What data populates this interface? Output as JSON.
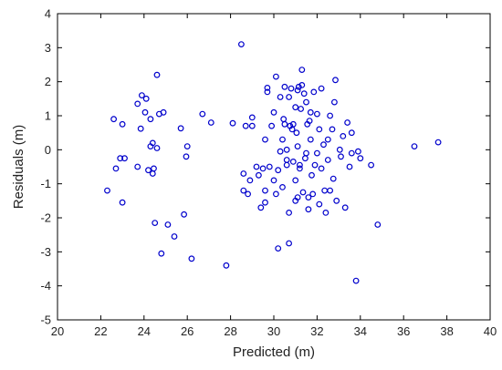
{
  "chart_data": {
    "type": "scatter",
    "title": "",
    "xlabel": "Predicted (m)",
    "ylabel": "Residuals (m)",
    "xlim": [
      20,
      40
    ],
    "ylim": [
      -5,
      4
    ],
    "x_ticks": [
      20,
      22,
      24,
      26,
      28,
      30,
      32,
      34,
      36,
      38,
      40
    ],
    "y_ticks": [
      -5,
      -4,
      -3,
      -2,
      -1,
      0,
      1,
      2,
      3,
      4
    ],
    "grid": false,
    "legend": "none",
    "marker": "open-circle",
    "marker_color": "#0000cc",
    "series": [
      {
        "points": [
          [
            22.3,
            -1.2
          ],
          [
            22.6,
            0.9
          ],
          [
            22.7,
            -0.55
          ],
          [
            22.9,
            -0.25
          ],
          [
            23.0,
            0.75
          ],
          [
            23.1,
            -0.25
          ],
          [
            23.0,
            -1.55
          ],
          [
            23.7,
            1.35
          ],
          [
            23.7,
            -0.5
          ],
          [
            23.9,
            1.6
          ],
          [
            23.85,
            0.62
          ],
          [
            24.1,
            1.5
          ],
          [
            24.05,
            1.1
          ],
          [
            24.2,
            -0.6
          ],
          [
            24.3,
            0.1
          ],
          [
            24.4,
            0.2
          ],
          [
            24.4,
            -0.7
          ],
          [
            24.3,
            0.9
          ],
          [
            24.45,
            -0.55
          ],
          [
            24.5,
            -2.15
          ],
          [
            24.6,
            2.2
          ],
          [
            24.6,
            0.05
          ],
          [
            24.7,
            1.05
          ],
          [
            24.8,
            -3.05
          ],
          [
            24.9,
            1.1
          ],
          [
            25.1,
            -2.2
          ],
          [
            25.4,
            -2.55
          ],
          [
            25.7,
            0.63
          ],
          [
            25.85,
            -1.9
          ],
          [
            26.0,
            0.1
          ],
          [
            25.95,
            -0.2
          ],
          [
            26.2,
            -3.2
          ],
          [
            26.7,
            1.05
          ],
          [
            27.1,
            0.8
          ],
          [
            27.8,
            -3.4
          ],
          [
            28.1,
            0.78
          ],
          [
            28.5,
            3.1
          ],
          [
            28.6,
            -0.7
          ],
          [
            28.6,
            -1.2
          ],
          [
            28.7,
            0.7
          ],
          [
            28.8,
            -1.3
          ],
          [
            28.9,
            -0.9
          ],
          [
            29.0,
            0.7
          ],
          [
            29.0,
            0.95
          ],
          [
            29.2,
            -0.5
          ],
          [
            29.3,
            -0.75
          ],
          [
            29.4,
            -1.7
          ],
          [
            29.5,
            -0.55
          ],
          [
            29.6,
            -1.2
          ],
          [
            29.6,
            -1.55
          ],
          [
            29.6,
            0.3
          ],
          [
            29.7,
            1.7
          ],
          [
            29.7,
            1.82
          ],
          [
            29.8,
            -0.5
          ],
          [
            29.9,
            0.7
          ],
          [
            30.0,
            -0.9
          ],
          [
            30.0,
            1.1
          ],
          [
            30.1,
            2.15
          ],
          [
            30.1,
            -1.3
          ],
          [
            30.2,
            -2.9
          ],
          [
            30.2,
            -0.6
          ],
          [
            30.3,
            -0.05
          ],
          [
            30.3,
            1.55
          ],
          [
            30.4,
            -1.1
          ],
          [
            30.4,
            0.3
          ],
          [
            30.45,
            0.9
          ],
          [
            30.5,
            1.85
          ],
          [
            30.5,
            0.75
          ],
          [
            30.6,
            -0.45
          ],
          [
            30.6,
            0.0
          ],
          [
            30.6,
            -0.3
          ],
          [
            30.7,
            1.55
          ],
          [
            30.7,
            -2.75
          ],
          [
            30.7,
            -1.85
          ],
          [
            30.75,
            0.7
          ],
          [
            30.8,
            1.8
          ],
          [
            30.85,
            0.6
          ],
          [
            30.9,
            -0.35
          ],
          [
            30.9,
            0.75
          ],
          [
            31.0,
            -1.5
          ],
          [
            31.0,
            -0.9
          ],
          [
            31.0,
            1.25
          ],
          [
            31.05,
            0.5
          ],
          [
            31.1,
            -1.4
          ],
          [
            31.1,
            0.1
          ],
          [
            31.1,
            1.75
          ],
          [
            31.15,
            1.85
          ],
          [
            31.2,
            -0.45
          ],
          [
            31.2,
            -0.55
          ],
          [
            31.25,
            1.2
          ],
          [
            31.3,
            2.35
          ],
          [
            31.3,
            1.9
          ],
          [
            31.35,
            -1.25
          ],
          [
            31.4,
            1.65
          ],
          [
            31.45,
            -0.25
          ],
          [
            31.5,
            -0.1
          ],
          [
            31.5,
            1.4
          ],
          [
            31.55,
            0.75
          ],
          [
            31.6,
            -1.4
          ],
          [
            31.6,
            -1.75
          ],
          [
            31.65,
            0.85
          ],
          [
            31.7,
            1.1
          ],
          [
            31.7,
            0.3
          ],
          [
            31.75,
            -0.75
          ],
          [
            31.8,
            -1.3
          ],
          [
            31.85,
            1.7
          ],
          [
            31.9,
            -0.45
          ],
          [
            32.0,
            -0.1
          ],
          [
            32.0,
            1.05
          ],
          [
            32.1,
            -1.6
          ],
          [
            32.1,
            0.6
          ],
          [
            32.2,
            1.8
          ],
          [
            32.2,
            -0.55
          ],
          [
            32.3,
            0.15
          ],
          [
            32.35,
            -1.2
          ],
          [
            32.4,
            -1.85
          ],
          [
            32.5,
            -0.3
          ],
          [
            32.5,
            0.3
          ],
          [
            32.6,
            1.0
          ],
          [
            32.6,
            -1.2
          ],
          [
            32.7,
            0.6
          ],
          [
            32.75,
            -0.85
          ],
          [
            32.8,
            1.4
          ],
          [
            32.85,
            2.05
          ],
          [
            32.9,
            -1.5
          ],
          [
            33.05,
            0.0
          ],
          [
            33.1,
            -0.2
          ],
          [
            33.2,
            0.4
          ],
          [
            33.3,
            -1.7
          ],
          [
            33.4,
            0.8
          ],
          [
            33.5,
            -0.5
          ],
          [
            33.6,
            0.5
          ],
          [
            33.6,
            -0.1
          ],
          [
            33.8,
            -3.85
          ],
          [
            33.9,
            -0.05
          ],
          [
            34.0,
            -0.25
          ],
          [
            34.5,
            -0.45
          ],
          [
            34.8,
            -2.2
          ],
          [
            36.5,
            0.1
          ],
          [
            37.6,
            0.22
          ]
        ]
      }
    ]
  }
}
